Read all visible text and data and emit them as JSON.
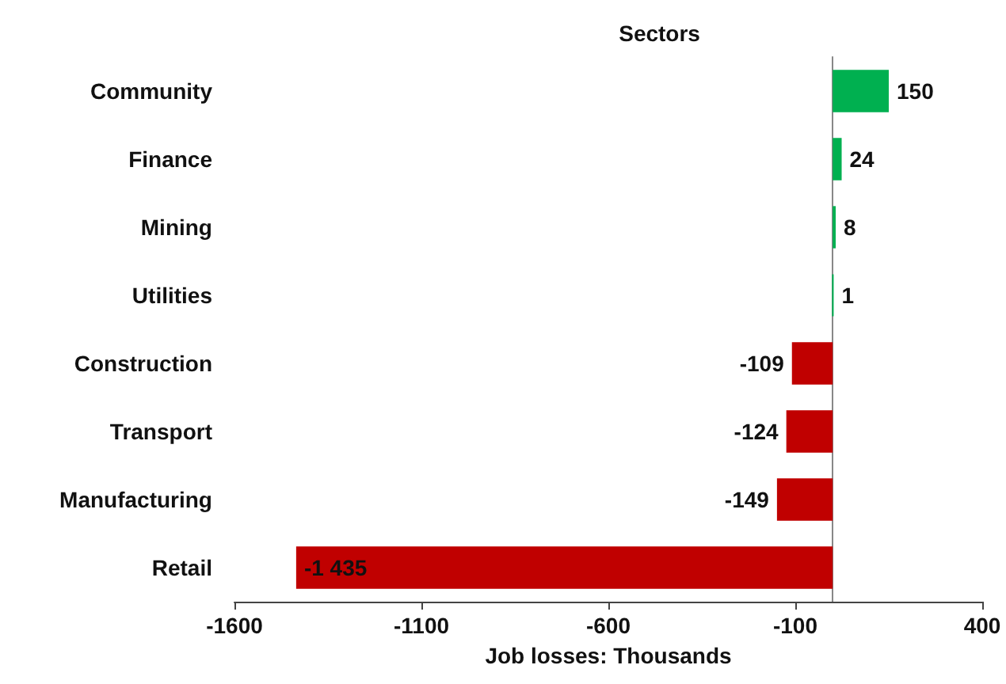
{
  "chart_data": {
    "type": "bar",
    "orientation": "horizontal",
    "ylabel": "Sectors",
    "xlabel": "Job losses: Thousands",
    "categories": [
      "Community",
      "Finance",
      "Mining",
      "Utilities",
      "Construction",
      "Transport",
      "Manufacturing",
      "Retail"
    ],
    "values": [
      150,
      24,
      8,
      1,
      -109,
      -124,
      -149,
      -1435
    ],
    "colors": [
      "#00b050",
      "#00b050",
      "#00b050",
      "#00b050",
      "#c00000",
      "#c00000",
      "#c00000",
      "#c00000"
    ],
    "value_labels": [
      "150",
      "24",
      "8",
      "1",
      "-109",
      "-124",
      "-149",
      "-1 435"
    ],
    "xlim": [
      -1600,
      400
    ],
    "xticks": [
      -1600,
      -1100,
      -600,
      -100,
      400
    ],
    "grid": false
  }
}
